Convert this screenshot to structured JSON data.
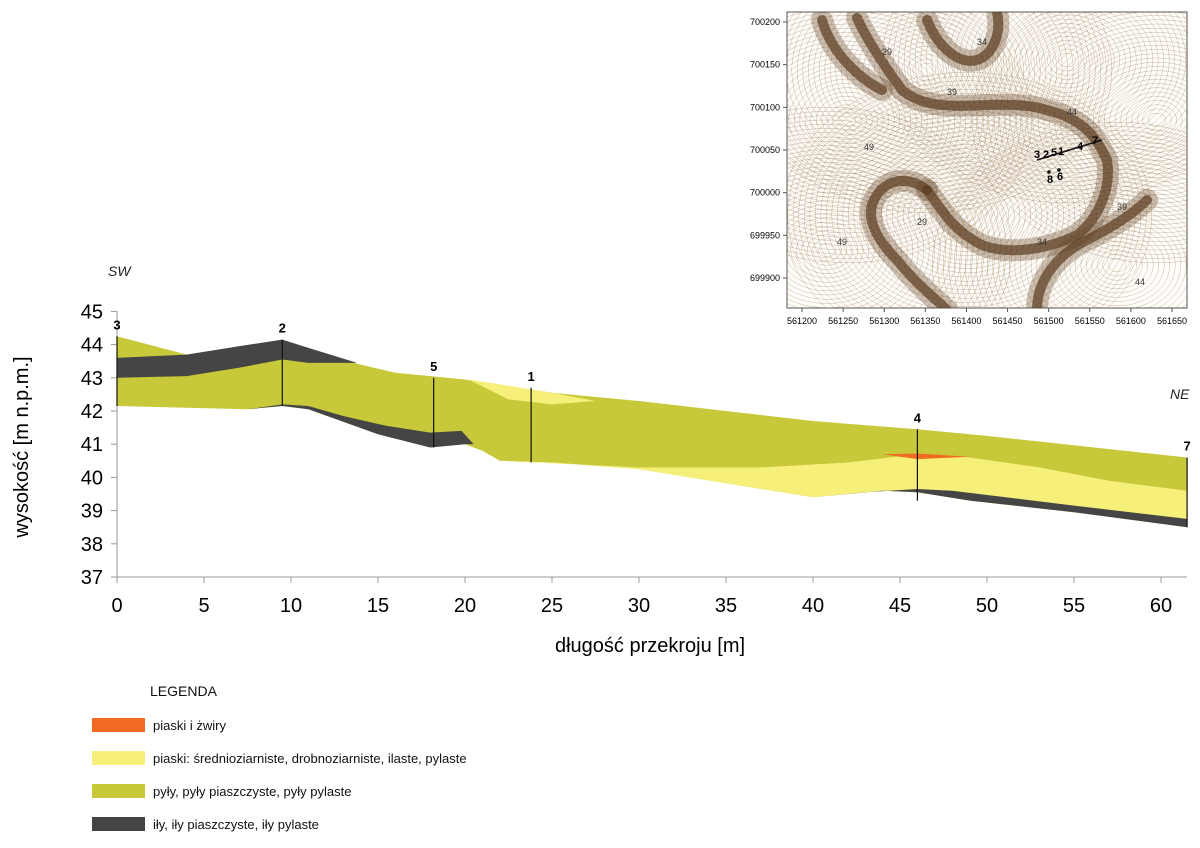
{
  "section": {
    "orientation": {
      "left": "SW",
      "right": "NE"
    },
    "xlabel": "długość przekroju [m]",
    "ylabel": "wysokość [m n.p.m.]",
    "xticks": [
      "0",
      "5",
      "10",
      "15",
      "20",
      "25",
      "30",
      "35",
      "40",
      "45",
      "50",
      "55",
      "60"
    ],
    "yticks": [
      "45",
      "44",
      "43",
      "42",
      "41",
      "40",
      "39",
      "38",
      "37"
    ],
    "x_range": [
      0,
      61.5
    ],
    "y_range": [
      37,
      45
    ],
    "boreholes": [
      {
        "id": "3",
        "x": 0,
        "top": 44.25,
        "bottom": 42.15
      },
      {
        "id": "2",
        "x": 9.5,
        "top": 44.15,
        "bottom": 42.15
      },
      {
        "id": "5",
        "x": 18.2,
        "top": 43.0,
        "bottom": 40.9
      },
      {
        "id": "1",
        "x": 23.8,
        "top": 42.7,
        "bottom": 40.45
      },
      {
        "id": "4",
        "x": 46,
        "top": 41.45,
        "bottom": 39.3
      },
      {
        "id": "7",
        "x": 61.5,
        "top": 40.6,
        "bottom": 38.5
      }
    ]
  },
  "legend": {
    "title": "LEGENDA",
    "items": [
      {
        "label": "piaski i żwiry",
        "color": "#f26a21"
      },
      {
        "label": "piaski: średnioziarniste, drobnoziarniste, ilaste, pylaste",
        "color": "#f6f07a"
      },
      {
        "label": "pyły, pyły piaszczyste, pyły pylaste",
        "color": "#c8c93a"
      },
      {
        "label": "iły, iły piaszczyste, iły pylaste",
        "color": "#454545"
      }
    ]
  },
  "inset_map": {
    "xticks": [
      "561200",
      "561250",
      "561300",
      "561350",
      "561400",
      "561450",
      "561500",
      "561550",
      "561600",
      "561650"
    ],
    "yticks": [
      "700200",
      "700150",
      "700100",
      "700050",
      "700000",
      "699950",
      "699900"
    ],
    "contour_labels": [
      "29",
      "34",
      "39",
      "44",
      "49"
    ],
    "borehole_labels": [
      "3",
      "2",
      "5",
      "1",
      "4",
      "7",
      "8",
      "6"
    ]
  }
}
